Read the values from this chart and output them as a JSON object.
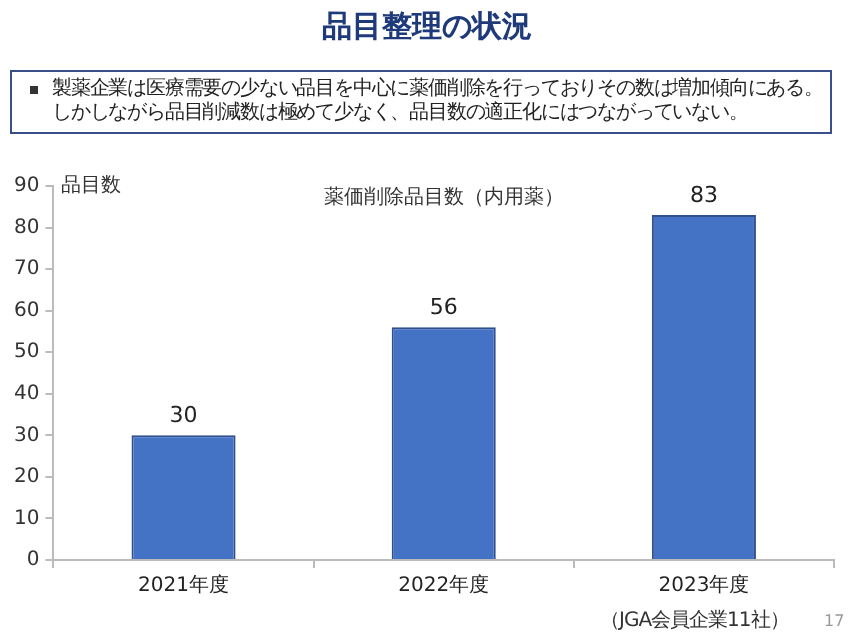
{
  "chart_data": {
    "type": "bar",
    "title": "品目整理の状況",
    "subtitle": "薬価削除品目数（内用薬）",
    "ylabel": "品目数",
    "annotations": [
      "製薬企業は医療需要の少ない品目を中心に薬価削除を行っておりその数は増加傾向にある。",
      "しかしながら品目削減数は極めて少なく、品目数の適正化にはつながっていない。",
      "（JGA会員企業11社）",
      "17"
    ],
    "categories": [
      "2021年度",
      "2022年度",
      "2023年度"
    ],
    "values": [
      30,
      56,
      83
    ],
    "color": "#4472c4",
    "ylim": [
      0,
      90
    ],
    "yticks": [
      0,
      10,
      20,
      30,
      40,
      50,
      60,
      70,
      80,
      90
    ],
    "grid": false,
    "data_labels": true
  }
}
